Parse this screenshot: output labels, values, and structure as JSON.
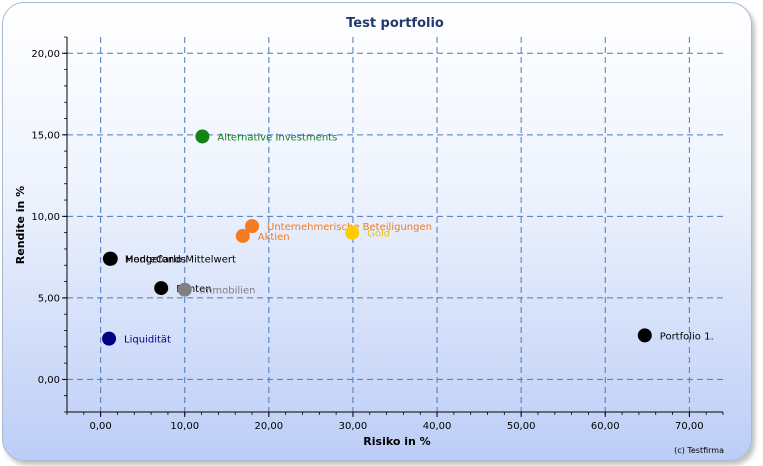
{
  "chart_data": {
    "type": "scatter",
    "title": "Test portfolio",
    "xlabel": "Risiko in %",
    "ylabel": "Rendite in %",
    "xlim": [
      -4,
      74
    ],
    "ylim": [
      -2,
      21
    ],
    "x_ticks": [
      "0,00",
      "10,00",
      "20,00",
      "30,00",
      "40,00",
      "50,00",
      "60,00",
      "70,00"
    ],
    "y_ticks": [
      "0,00",
      "5,00",
      "10,00",
      "15,00",
      "20,00"
    ],
    "grid": true,
    "copyright": "(c) Testfirma",
    "points": [
      {
        "label": "Alternative Investments",
        "x": 12.1,
        "y": 14.9,
        "color": "#148214",
        "label_color": "#148214"
      },
      {
        "label": "Unternehmerische Beteiligungen",
        "x": 18.0,
        "y": 9.4,
        "color": "#f47b20",
        "label_color": "#f47b20"
      },
      {
        "label": "Aktien",
        "x": 16.9,
        "y": 8.8,
        "color": "#f47b20",
        "label_color": "#f47b20"
      },
      {
        "label": "Gold",
        "x": 29.9,
        "y": 9.0,
        "color": "#ffcc00",
        "label_color": "#f0c000"
      },
      {
        "label": "MonteCarlo Mittelwert",
        "x": 1.1,
        "y": 7.4,
        "color": "#000000",
        "label_color": "#000000"
      },
      {
        "label": "Hedgefonds",
        "x": 1.2,
        "y": 7.4,
        "color": "#000000",
        "label_color": "#000000"
      },
      {
        "label": "Renten",
        "x": 7.2,
        "y": 5.6,
        "color": "#000000",
        "label_color": "#000000"
      },
      {
        "label": "Immobilien",
        "x": 10.0,
        "y": 5.5,
        "color": "#808080",
        "label_color": "#808080"
      },
      {
        "label": "Liquidität",
        "x": 1.0,
        "y": 2.5,
        "color": "#000080",
        "label_color": "#000080"
      },
      {
        "label": "Portfolio 1.",
        "x": 64.7,
        "y": 2.7,
        "color": "#000000",
        "label_color": "#000000"
      }
    ]
  }
}
